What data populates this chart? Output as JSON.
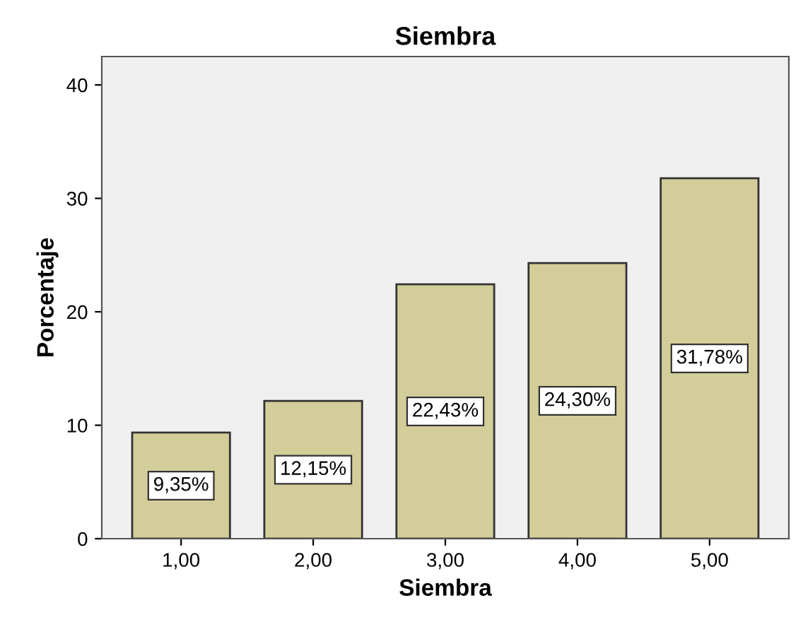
{
  "chart_data": {
    "type": "bar",
    "title": "Siembra",
    "xlabel": "Siembra",
    "ylabel": "Porcentaje",
    "categories": [
      "1,00",
      "2,00",
      "3,00",
      "4,00",
      "5,00"
    ],
    "values": [
      9.35,
      12.15,
      22.43,
      24.3,
      31.78
    ],
    "value_labels": [
      "9,35%",
      "12,15%",
      "22,43%",
      "24,30%",
      "31,78%"
    ],
    "color": "#d3ce99",
    "ylim": [
      0,
      42.5
    ],
    "yticks": [
      0,
      10,
      20,
      30,
      40
    ],
    "grid": false
  }
}
